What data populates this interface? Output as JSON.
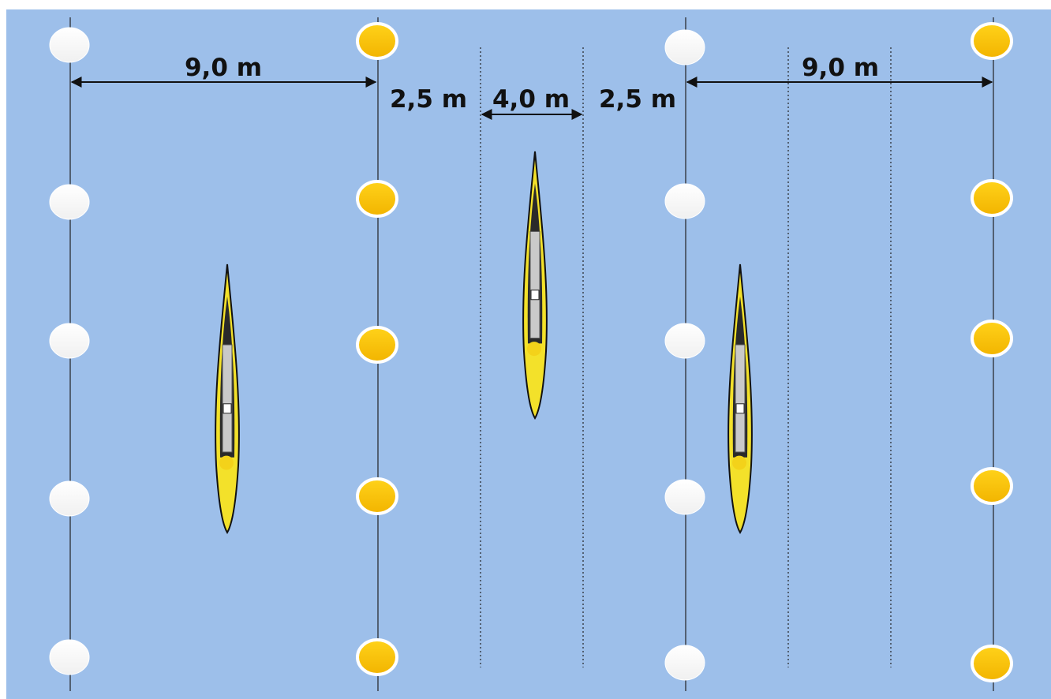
{
  "dimensions": [
    "9,0 m",
    "2,5 m",
    "4,0 m",
    "2,5 m",
    "9,0 m"
  ]
}
